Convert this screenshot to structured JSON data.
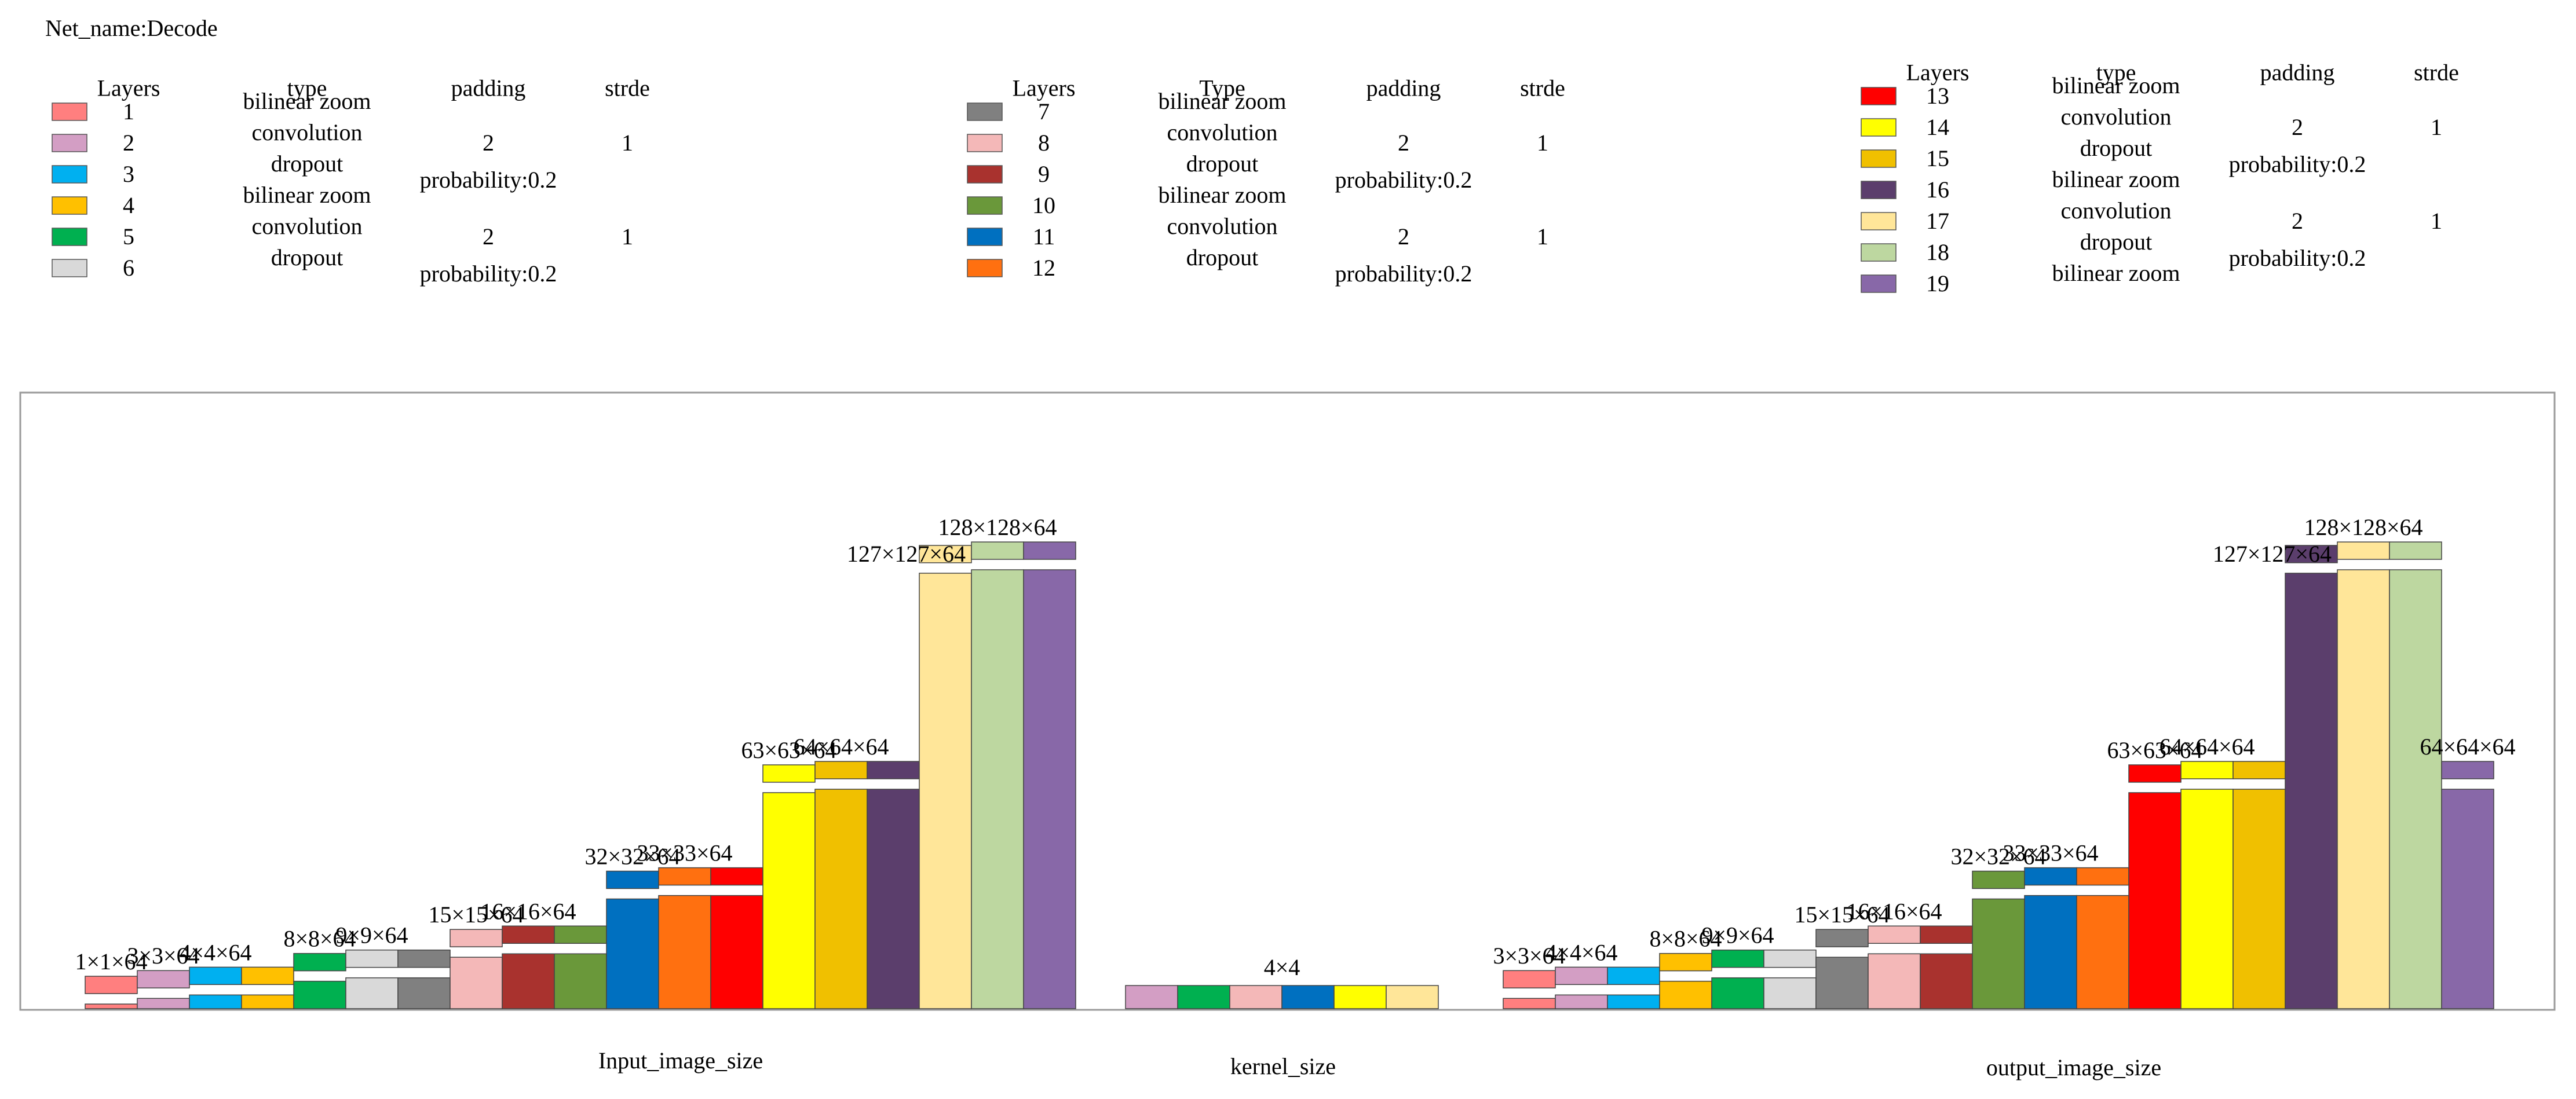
{
  "net_name": "Net_name:Decode",
  "legend_groups": [
    {
      "headers": [
        "Layers",
        "type",
        "padding",
        "strde"
      ],
      "rows": [
        {
          "layer": "1",
          "color": "#FF7F7F",
          "type": "bilinear zoom",
          "padding": "",
          "stride": ""
        },
        {
          "layer": "2",
          "color": "#D39EC4",
          "type": "convolution",
          "padding": "2",
          "stride": "1"
        },
        {
          "layer": "3",
          "color": "#00B0F0",
          "type": "dropout",
          "padding": "probability:0.2",
          "stride": ""
        },
        {
          "layer": "4",
          "color": "#FFC000",
          "type": "bilinear zoom",
          "padding": "",
          "stride": ""
        },
        {
          "layer": "5",
          "color": "#00B050",
          "type": "convolution",
          "padding": "2",
          "stride": "1"
        },
        {
          "layer": "6",
          "color": "#D9D9D9",
          "type": "dropout",
          "padding": "probability:0.2",
          "stride": ""
        }
      ]
    },
    {
      "headers": [
        "Layers",
        "Type",
        "padding",
        "strde"
      ],
      "rows": [
        {
          "layer": "7",
          "color": "#808080",
          "type": "bilinear zoom",
          "padding": "",
          "stride": ""
        },
        {
          "layer": "8",
          "color": "#F4B8B8",
          "type": "convolution",
          "padding": "2",
          "stride": "1"
        },
        {
          "layer": "9",
          "color": "#A9322E",
          "type": "dropout",
          "padding": "probability:0.2",
          "stride": ""
        },
        {
          "layer": "10",
          "color": "#6A983A",
          "type": "bilinear zoom",
          "padding": "",
          "stride": ""
        },
        {
          "layer": "11",
          "color": "#0070C0",
          "type": "convolution",
          "padding": "2",
          "stride": "1"
        },
        {
          "layer": "12",
          "color": "#FF7010",
          "type": "dropout",
          "padding": "probability:0.2",
          "stride": ""
        }
      ]
    },
    {
      "headers": [
        "Layers",
        "type",
        "padding",
        "strde"
      ],
      "rows": [
        {
          "layer": "13",
          "color": "#FF0000",
          "type": "bilinear zoom",
          "padding": "",
          "stride": ""
        },
        {
          "layer": "14",
          "color": "#FFFF00",
          "type": "convolution",
          "padding": "2",
          "stride": "1"
        },
        {
          "layer": "15",
          "color": "#F0C000",
          "type": "dropout",
          "padding": "probability:0.2",
          "stride": ""
        },
        {
          "layer": "16",
          "color": "#5B3E6C",
          "type": "bilinear zoom",
          "padding": "",
          "stride": ""
        },
        {
          "layer": "17",
          "color": "#FFE699",
          "type": "convolution",
          "padding": "2",
          "stride": "1"
        },
        {
          "layer": "18",
          "color": "#BDD7A0",
          "type": "dropout",
          "padding": "probability:0.2",
          "stride": ""
        },
        {
          "layer": "19",
          "color": "#8868A8",
          "type": "bilinear zoom",
          "padding": "",
          "stride": ""
        }
      ]
    }
  ],
  "sections": {
    "input": {
      "caption": "Input_image_size",
      "bars": [
        {
          "layer": "1",
          "size": 1,
          "label": "1×1×64"
        },
        {
          "layer": "2",
          "size": 3,
          "label": "3×3×64"
        },
        {
          "layer": "3",
          "size": 4,
          "label": "4×4×64"
        },
        {
          "layer": "4",
          "size": 4,
          "label": ""
        },
        {
          "layer": "5",
          "size": 8,
          "label": "8×8×64"
        },
        {
          "layer": "6",
          "size": 9,
          "label": "9×9×64"
        },
        {
          "layer": "7",
          "size": 9,
          "label": ""
        },
        {
          "layer": "8",
          "size": 15,
          "label": "15×15×64"
        },
        {
          "layer": "9",
          "size": 16,
          "label": "16×16×64"
        },
        {
          "layer": "10",
          "size": 16,
          "label": ""
        },
        {
          "layer": "11",
          "size": 32,
          "label": "32×32×64"
        },
        {
          "layer": "12",
          "size": 33,
          "label": "33×33×64"
        },
        {
          "layer": "13",
          "size": 33,
          "label": ""
        },
        {
          "layer": "14",
          "size": 63,
          "label": "63×63×64"
        },
        {
          "layer": "15",
          "size": 64,
          "label": "64×64×64"
        },
        {
          "layer": "16",
          "size": 64,
          "label": ""
        },
        {
          "layer": "17",
          "size": 127,
          "label": "127×127×64"
        },
        {
          "layer": "18",
          "size": 128,
          "label": "128×128×64"
        },
        {
          "layer": "19",
          "size": 128,
          "label": ""
        }
      ]
    },
    "kernel": {
      "caption": "kernel_size",
      "label": "4×4",
      "layers": [
        "2",
        "5",
        "8",
        "11",
        "14",
        "17"
      ]
    },
    "output": {
      "caption": "output_image_size",
      "bars": [
        {
          "layer": "1",
          "size": 3,
          "label": "3×3×64"
        },
        {
          "layer": "2",
          "size": 4,
          "label": "4×4×64"
        },
        {
          "layer": "3",
          "size": 4,
          "label": ""
        },
        {
          "layer": "4",
          "size": 8,
          "label": "8×8×64"
        },
        {
          "layer": "5",
          "size": 9,
          "label": "9×9×64"
        },
        {
          "layer": "6",
          "size": 9,
          "label": ""
        },
        {
          "layer": "7",
          "size": 15,
          "label": "15×15×64"
        },
        {
          "layer": "8",
          "size": 16,
          "label": "16×16×64"
        },
        {
          "layer": "9",
          "size": 16,
          "label": ""
        },
        {
          "layer": "10",
          "size": 32,
          "label": "32×32×64"
        },
        {
          "layer": "11",
          "size": 33,
          "label": "33×33×64"
        },
        {
          "layer": "12",
          "size": 33,
          "label": ""
        },
        {
          "layer": "13",
          "size": 63,
          "label": "63×63×64"
        },
        {
          "layer": "14",
          "size": 64,
          "label": "64×64×64"
        },
        {
          "layer": "15",
          "size": 64,
          "label": ""
        },
        {
          "layer": "16",
          "size": 127,
          "label": "127×127×64"
        },
        {
          "layer": "17",
          "size": 128,
          "label": "128×128×64"
        },
        {
          "layer": "18",
          "size": 128,
          "label": ""
        },
        {
          "layer": "19",
          "size": 64,
          "label": "64×64×64"
        }
      ]
    }
  }
}
